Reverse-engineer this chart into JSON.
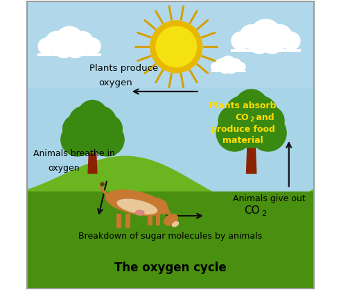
{
  "title": "The oxygen cycle",
  "title_fontsize": 12,
  "title_fontweight": "bold",
  "bg_sky_color": "#a8d4e8",
  "bg_sky_light": "#c8e4f0",
  "bg_grass_color": "#6ab520",
  "bg_grass_dark": "#4a9010",
  "bg_hill_color": "#6ab520",
  "sun_inner_color": "#f5e010",
  "sun_outer_color": "#e8b800",
  "sun_ray_color": "#d4a000",
  "cloud_color": "#ffffff",
  "tree_trunk_color": "#8B2200",
  "tree_foliage_color": "#3a8a12",
  "tree_foliage_dark": "#2a6a0a",
  "cow_body_color": "#c87830",
  "cow_belly_color": "#e8c898",
  "cow_pink": "#d48880",
  "text_black": "#000000",
  "text_yellow": "#ffdd00",
  "arrow_color": "#111111",
  "border_color": "#999999",
  "labels": {
    "plants_produce": "Plants produce\noxygen",
    "animals_breathe": "Animals breathe in\noxygen",
    "plants_absorb_1": "Plants absorb",
    "plants_absorb_2": "CO",
    "plants_absorb_2sub": "2",
    "plants_absorb_2end": " and",
    "plants_absorb_3": "produce food",
    "plants_absorb_4": "material",
    "animals_give_1": "Animals give out",
    "animals_give_2": "CO",
    "animals_give_2sub": "2",
    "breakdown": "Breakdown of sugar molecules by animals"
  },
  "figsize": [
    4.92,
    4.18
  ],
  "dpi": 100
}
